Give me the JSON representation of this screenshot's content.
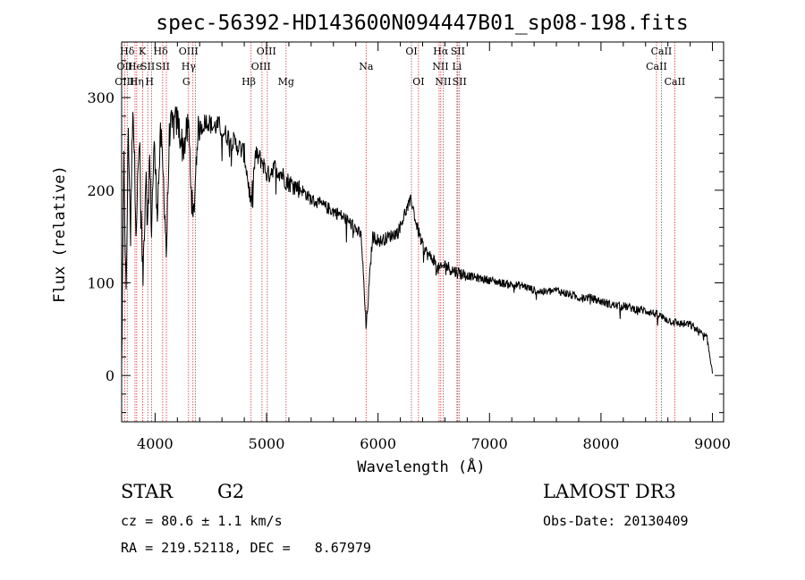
{
  "chart_data": {
    "type": "line",
    "title": "spec-56392-HD143600N094447B01_sp08-198.fits",
    "xlabel": "Wavelength (Å)",
    "ylabel": "Flux (relative)",
    "xlim": [
      3700,
      9100
    ],
    "ylim": [
      -50,
      360
    ],
    "x_ticks": [
      4000,
      5000,
      6000,
      7000,
      8000,
      9000
    ],
    "y_ticks": [
      0,
      100,
      200,
      300
    ],
    "spectrum_anchor_points": {
      "x": [
        3700,
        3720,
        3740,
        3760,
        3780,
        3800,
        3830,
        3860,
        3890,
        3920,
        3933,
        3950,
        3968,
        3990,
        4020,
        4050,
        4080,
        4101,
        4130,
        4160,
        4200,
        4250,
        4300,
        4340,
        4380,
        4420,
        4470,
        4520,
        4570,
        4620,
        4680,
        4740,
        4800,
        4861,
        4900,
        4960,
        5010,
        5060,
        5120,
        5180,
        5250,
        5320,
        5400,
        5480,
        5560,
        5640,
        5720,
        5790,
        5850,
        5893,
        5950,
        6020,
        6100,
        6180,
        6240,
        6300,
        6340,
        6400,
        6450,
        6500,
        6530,
        6563,
        6600,
        6650,
        6700,
        6750,
        6800,
        6900,
        7000,
        7100,
        7200,
        7300,
        7400,
        7500,
        7600,
        7700,
        7800,
        7900,
        8000,
        8100,
        8200,
        8300,
        8400,
        8500,
        8600,
        8700,
        8800,
        8900,
        8950,
        9000
      ],
      "y": [
        5,
        230,
        80,
        270,
        150,
        300,
        160,
        255,
        100,
        230,
        150,
        240,
        160,
        250,
        180,
        260,
        200,
        130,
        265,
        270,
        275,
        245,
        270,
        160,
        260,
        270,
        275,
        268,
        270,
        262,
        255,
        248,
        240,
        185,
        238,
        232,
        215,
        225,
        220,
        210,
        205,
        200,
        190,
        185,
        180,
        175,
        168,
        160,
        150,
        50,
        150,
        145,
        150,
        155,
        175,
        190,
        165,
        140,
        130,
        125,
        115,
        115,
        120,
        115,
        112,
        110,
        108,
        105,
        103,
        100,
        98,
        97,
        92,
        90,
        92,
        88,
        84,
        84,
        80,
        76,
        75,
        72,
        70,
        66,
        60,
        56,
        55,
        45,
        40,
        5
      ]
    },
    "line_markers": [
      {
        "label": "Hδ",
        "x": 3750,
        "row": 1
      },
      {
        "label": "OII",
        "x": 3727,
        "row": 2
      },
      {
        "label": "OIII",
        "x": 3726,
        "row": 3
      },
      {
        "label": "K",
        "x": 3885,
        "row": 1
      },
      {
        "label": "He",
        "x": 3820,
        "row": 2
      },
      {
        "label": "Hη",
        "x": 3835,
        "row": 3
      },
      {
        "label": "SII",
        "x": 3934,
        "row": 2
      },
      {
        "label": "H",
        "x": 3950,
        "row": 3
      },
      {
        "label": "Hδ",
        "x": 4050,
        "row": 1
      },
      {
        "label": "SII",
        "x": 4068,
        "row": 2
      },
      {
        "label": "OIII",
        "x": 4300,
        "row": 1
      },
      {
        "label": "Hγ",
        "x": 4300,
        "row": 2
      },
      {
        "label": "G",
        "x": 4280,
        "row": 3
      },
      {
        "label": "OIII",
        "x": 4998,
        "row": 1
      },
      {
        "label": "OIII",
        "x": 4950,
        "row": 2
      },
      {
        "label": "Hβ",
        "x": 4840,
        "row": 3
      },
      {
        "label": "Mg",
        "x": 5175,
        "row": 3
      },
      {
        "label": "Na",
        "x": 5893,
        "row": 2
      },
      {
        "label": "OI",
        "x": 6300,
        "row": 1
      },
      {
        "label": "OI",
        "x": 6363,
        "row": 3
      },
      {
        "label": "Hα",
        "x": 6563,
        "row": 1
      },
      {
        "label": "SII",
        "x": 6716,
        "row": 1
      },
      {
        "label": "NII",
        "x": 6560,
        "row": 2
      },
      {
        "label": "Li",
        "x": 6708,
        "row": 2
      },
      {
        "label": "NII",
        "x": 6584,
        "row": 3
      },
      {
        "label": "SII",
        "x": 6731,
        "row": 3
      },
      {
        "label": "CaII",
        "x": 8542,
        "row": 1
      },
      {
        "label": "CaII",
        "x": 8498,
        "row": 2
      },
      {
        "label": "CaII",
        "x": 8662,
        "row": 3
      }
    ],
    "line_positions": [
      3727,
      3750,
      3820,
      3835,
      3889,
      3934,
      3968,
      4068,
      4101,
      4300,
      4340,
      4363,
      4861,
      4959,
      5007,
      5175,
      5893,
      6300,
      6363,
      6548,
      6563,
      6584,
      6708,
      6716,
      6731,
      8498,
      8542,
      8662
    ]
  },
  "info": {
    "object_class": "STAR",
    "subclass": "G2",
    "survey": "LAMOST DR3",
    "redshift_text": "cz = 80.6 ± 1.1 km/s",
    "obs_date_text": "Obs-Date: 20130409",
    "coords_text": "RA = 219.52118, DEC =   8.67979"
  },
  "colors": {
    "spectrum": "#000000",
    "line_marker": "#c8373a",
    "axis": "#000000"
  }
}
